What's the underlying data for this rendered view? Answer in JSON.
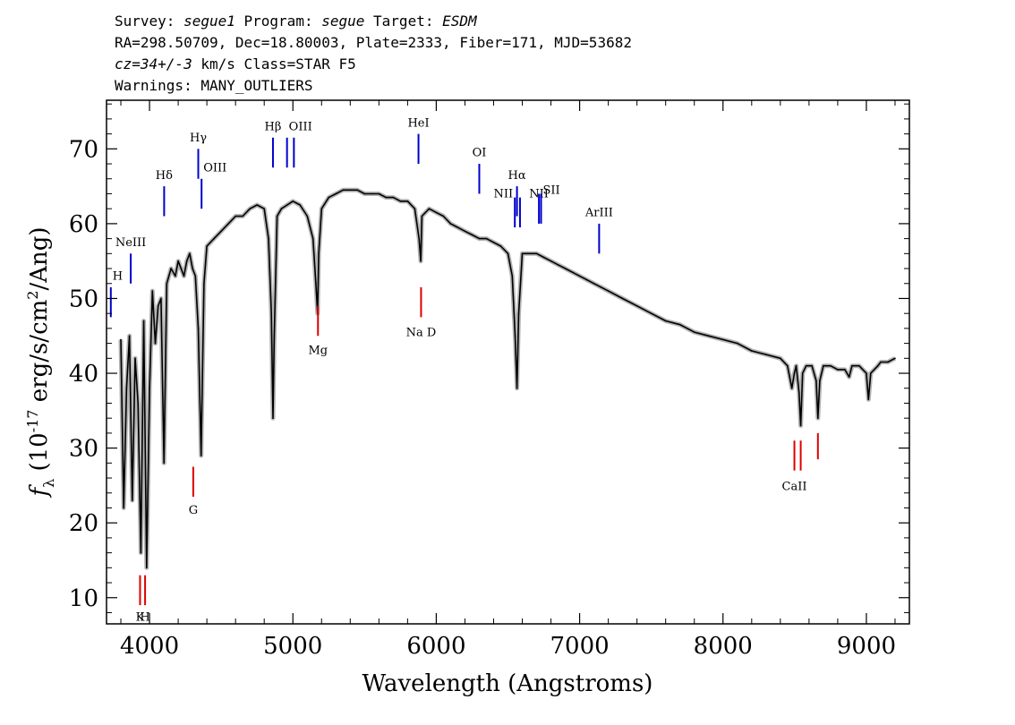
{
  "header": {
    "line1": {
      "survey_label": "Survey:",
      "survey_value": "segue1",
      "program_label": "Program:",
      "program_value": "segue",
      "target_label": "Target:",
      "target_value": "ESDM"
    },
    "line2": "RA=298.50709, Dec=18.80003, Plate=2333, Fiber=171, MJD=53682",
    "line3": {
      "cz_value": "cz=34+/-3",
      "rest": " km/s Class=STAR F5"
    },
    "line4": "Warnings: MANY_OUTLIERS"
  },
  "chart_data": {
    "type": "line",
    "xlabel": "Wavelength (Angstroms)",
    "ylabel": "f_λ (10^-17 erg/s/cm^2/Ang)",
    "xlim": [
      3700,
      9300
    ],
    "ylim": [
      6.5,
      76.5
    ],
    "xticks": [
      4000,
      5000,
      6000,
      7000,
      8000,
      9000
    ],
    "yticks": [
      10,
      20,
      30,
      40,
      50,
      60,
      70
    ],
    "grid": false,
    "colors": {
      "spectrum": "#000000",
      "error": "#b4b4b4",
      "emission": "#0000cc",
      "absorption": "#dd0000"
    },
    "series": [
      {
        "x": [
          3800,
          3820,
          3840,
          3860,
          3880,
          3900,
          3920,
          3940,
          3960,
          3980,
          4000,
          4020,
          4040,
          4060,
          4080,
          4101,
          4120,
          4150,
          4180,
          4200,
          4220,
          4240,
          4260,
          4280,
          4300,
          4320,
          4340,
          4360,
          4380,
          4400,
          4450,
          4500,
          4550,
          4600,
          4650,
          4700,
          4750,
          4800,
          4830,
          4850,
          4861,
          4870,
          4890,
          4920,
          4960,
          5000,
          5050,
          5100,
          5140,
          5160,
          5172,
          5180,
          5200,
          5250,
          5300,
          5350,
          5400,
          5450,
          5500,
          5550,
          5600,
          5650,
          5700,
          5750,
          5800,
          5850,
          5880,
          5892,
          5900,
          5950,
          6000,
          6050,
          6100,
          6150,
          6200,
          6250,
          6300,
          6350,
          6400,
          6450,
          6500,
          6530,
          6550,
          6563,
          6575,
          6600,
          6650,
          6700,
          6750,
          6800,
          6850,
          6900,
          6950,
          7000,
          7050,
          7100,
          7150,
          7200,
          7300,
          7400,
          7500,
          7600,
          7700,
          7800,
          7900,
          8000,
          8100,
          8200,
          8300,
          8400,
          8450,
          8480,
          8498,
          8510,
          8530,
          8542,
          8555,
          8580,
          8620,
          8650,
          8662,
          8675,
          8700,
          8750,
          8800,
          8850,
          8880,
          8900,
          8950,
          9000,
          9015,
          9030,
          9080,
          9100,
          9150,
          9200
        ],
        "y": [
          44.5,
          22,
          38,
          45,
          23,
          42,
          36,
          16,
          47,
          14,
          38,
          51,
          44,
          49,
          50,
          28,
          52,
          54,
          53,
          55,
          54,
          53,
          55,
          56,
          54,
          53,
          46,
          29,
          52,
          57,
          58,
          59,
          60,
          61,
          61,
          62,
          62.5,
          62,
          58,
          48,
          34,
          45,
          61,
          62,
          62.5,
          63,
          62.5,
          61,
          58,
          52,
          48,
          56,
          62,
          63.5,
          64,
          64.5,
          64.5,
          64.5,
          64,
          64,
          64,
          63.5,
          63.5,
          63,
          63,
          62,
          58,
          55,
          61,
          62,
          61.5,
          61,
          60,
          59.5,
          59,
          58.5,
          58,
          58,
          57.5,
          57,
          56,
          53,
          45,
          38,
          48,
          56,
          56,
          56,
          55.5,
          55,
          54.5,
          54,
          53.5,
          53,
          52.5,
          52,
          51.5,
          51,
          50,
          49,
          48,
          47,
          46.5,
          45.5,
          45,
          44.5,
          44,
          43,
          42.5,
          42,
          41,
          38,
          40,
          41,
          37.5,
          33,
          40,
          41,
          41,
          39,
          34,
          39,
          41,
          41,
          40.5,
          40.5,
          39.5,
          41,
          41,
          40,
          36.5,
          40,
          41,
          41.5,
          41.5,
          42
        ]
      }
    ],
    "line_labels": {
      "emission": [
        {
          "label": "H",
          "x": 3730,
          "y": [
            47.5,
            51.5
          ],
          "label_y": 52.5,
          "anchor": "start"
        },
        {
          "label": "NeIII",
          "x": 3869,
          "y": [
            52,
            56
          ],
          "label_y": 57,
          "anchor": "middle"
        },
        {
          "label": "Hδ",
          "x": 4102,
          "y": [
            61,
            65
          ],
          "label_y": 66,
          "anchor": "middle"
        },
        {
          "label": "Hγ",
          "x": 4340,
          "y": [
            66,
            70
          ],
          "label_y": 71,
          "anchor": "middle"
        },
        {
          "label": "OIII",
          "x": 4363,
          "y": [
            62,
            66
          ],
          "label_y": 67,
          "anchor": "start"
        },
        {
          "label": "Hβ",
          "x": 4861,
          "y": [
            67.5,
            71.5
          ],
          "label_y": 72.5,
          "anchor": "middle"
        },
        {
          "label": "OIII",
          "x": 4959,
          "y": [
            67.5,
            71.5
          ],
          "label_y": 72.5,
          "anchor": "start"
        },
        {
          "label": "",
          "x": 5007,
          "y": [
            67.5,
            71.5
          ]
        },
        {
          "label": "HeI",
          "x": 5876,
          "y": [
            68,
            72
          ],
          "label_y": 73,
          "anchor": "middle"
        },
        {
          "label": "OI",
          "x": 6300,
          "y": [
            64,
            68
          ],
          "label_y": 69,
          "anchor": "middle"
        },
        {
          "label": "NII",
          "x": 6548,
          "y": [
            59.5,
            63.5
          ],
          "label_y": 63.5,
          "anchor": "end"
        },
        {
          "label": "Hα",
          "x": 6563,
          "y": [
            61,
            65
          ],
          "label_y": 66,
          "anchor": "middle"
        },
        {
          "label": "",
          "x": 6584,
          "y": [
            59.5,
            63.5
          ]
        },
        {
          "label": "NII",
          "x": 6716,
          "y": [
            60,
            64
          ],
          "label_y": 63.5,
          "anchor": "middle"
        },
        {
          "label": "SII",
          "x": 6731,
          "y": [
            60,
            64
          ],
          "label_y": 64,
          "anchor": "start"
        },
        {
          "label": "ArIII",
          "x": 7136,
          "y": [
            56,
            60
          ],
          "label_y": 61,
          "anchor": "middle"
        }
      ],
      "absorption": [
        {
          "label": "K",
          "x": 3934,
          "y": [
            9,
            13
          ],
          "label_y": 6.9,
          "anchor": "middle"
        },
        {
          "label": "H",
          "x": 3969,
          "y": [
            9,
            13
          ],
          "label_y": 6.9,
          "anchor": "middle"
        },
        {
          "label": "G",
          "x": 4305,
          "y": [
            23.5,
            27.5
          ],
          "label_y": 21.2,
          "anchor": "middle"
        },
        {
          "label": "Mg",
          "x": 5175,
          "y": [
            45,
            49
          ],
          "label_y": 42.6,
          "anchor": "middle"
        },
        {
          "label": "Na D",
          "x": 5894,
          "y": [
            47.5,
            51.5
          ],
          "label_y": 45,
          "anchor": "middle"
        },
        {
          "label": "CaII",
          "x": 8498,
          "y": [
            27,
            31
          ],
          "label_y": 24.4,
          "anchor": "middle"
        },
        {
          "label": "",
          "x": 8542,
          "y": [
            27,
            31
          ]
        },
        {
          "label": "",
          "x": 8662,
          "y": [
            28.5,
            32
          ]
        }
      ]
    }
  }
}
